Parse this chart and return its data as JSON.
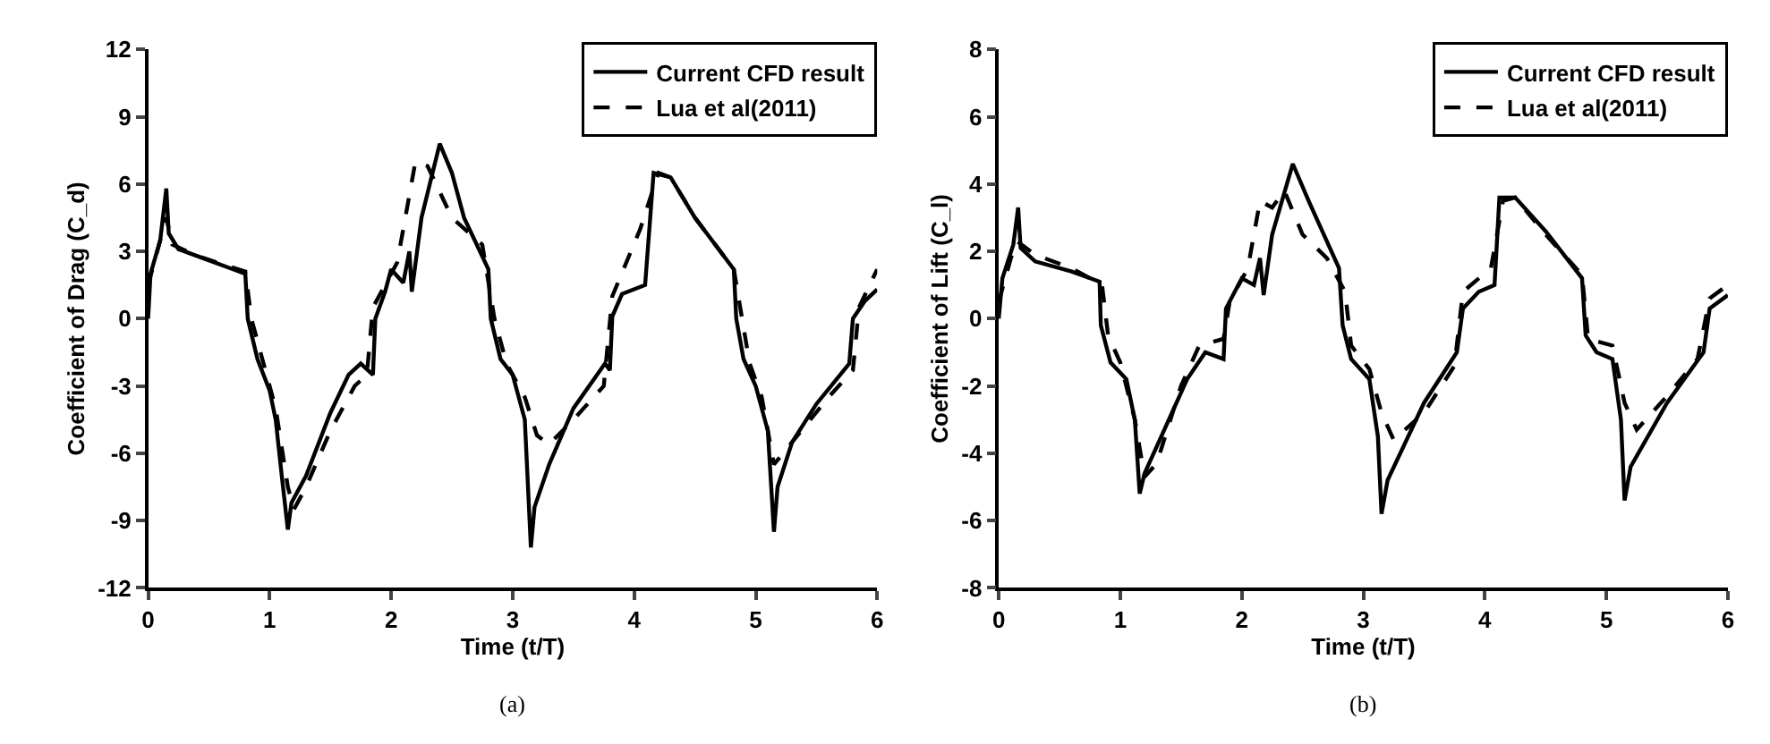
{
  "chart_data": [
    {
      "type": "line",
      "xlabel": "Time (t/T)",
      "ylabel": "Coefficient of Drag (C_d)",
      "xlim": [
        0,
        6
      ],
      "xticks": [
        0,
        1,
        2,
        3,
        4,
        5,
        6
      ],
      "ylim": [
        -12,
        12
      ],
      "yticks": [
        -12,
        -9,
        -6,
        -3,
        0,
        3,
        6,
        9,
        12
      ],
      "legend": "top right",
      "marker": "none",
      "annotations": [
        "(a)"
      ],
      "series": [
        {
          "name": "Current CFD result",
          "color": "#000000",
          "line_style": "solid",
          "x": [
            0,
            0.02,
            0.1,
            0.15,
            0.17,
            0.25,
            0.5,
            0.8,
            0.82,
            0.9,
            1.0,
            1.05,
            1.1,
            1.15,
            1.18,
            1.3,
            1.5,
            1.65,
            1.75,
            1.85,
            1.87,
            1.95,
            2.0,
            2.1,
            2.15,
            2.17,
            2.25,
            2.4,
            2.5,
            2.6,
            2.8,
            2.82,
            2.9,
            3.0,
            3.1,
            3.15,
            3.18,
            3.3,
            3.5,
            3.76,
            3.8,
            3.82,
            3.9,
            4.09,
            4.16,
            4.3,
            4.5,
            4.82,
            4.84,
            4.9,
            5.0,
            5.1,
            5.15,
            5.18,
            5.3,
            5.5,
            5.77,
            5.8,
            5.9,
            6.0
          ],
          "values": [
            0,
            2,
            3.5,
            5.8,
            3.8,
            3.1,
            2.6,
            2.0,
            0,
            -1.8,
            -3.2,
            -4.5,
            -7,
            -9.4,
            -8.2,
            -7,
            -4.2,
            -2.5,
            -2.0,
            -2.5,
            0,
            1.2,
            2.2,
            1.6,
            3.0,
            1.2,
            4.5,
            7.8,
            6.5,
            4.5,
            2.2,
            0,
            -1.8,
            -2.5,
            -4.5,
            -10.2,
            -8.4,
            -6.5,
            -4.0,
            -2.0,
            -2.3,
            0.1,
            1.1,
            1.5,
            6.5,
            6.3,
            4.5,
            2.2,
            0,
            -1.8,
            -3.0,
            -5,
            -9.5,
            -7.5,
            -5.5,
            -3.8,
            -2.0,
            0,
            0.8,
            1.3
          ]
        },
        {
          "name": "Lua et al(2011)",
          "color": "#000000",
          "line_style": "dashed",
          "x": [
            0,
            0.05,
            0.15,
            0.2,
            0.4,
            0.8,
            0.85,
            0.95,
            1.05,
            1.15,
            1.2,
            1.3,
            1.5,
            1.7,
            1.8,
            1.85,
            1.95,
            2.05,
            2.2,
            2.3,
            2.5,
            2.75,
            2.85,
            2.95,
            3.1,
            3.2,
            3.3,
            3.5,
            3.75,
            3.82,
            4.05,
            4.2,
            4.3,
            4.5,
            4.82,
            4.95,
            5.05,
            5.15,
            5.3,
            5.6,
            5.8,
            5.85,
            6.0
          ],
          "values": [
            1.5,
            2.5,
            4.5,
            3.3,
            2.8,
            2.1,
            0,
            -2.0,
            -4.0,
            -7.5,
            -8.5,
            -7.5,
            -5,
            -3.0,
            -2.5,
            0.5,
            1.5,
            2.5,
            7.0,
            6.8,
            4.5,
            3.3,
            0,
            -2.0,
            -3.5,
            -5.2,
            -5.6,
            -4.5,
            -3.0,
            1.0,
            4.0,
            6.5,
            6.3,
            4.5,
            2.2,
            -2.0,
            -3.5,
            -6.5,
            -5.5,
            -3.5,
            -2.3,
            0.5,
            2.2
          ]
        }
      ]
    },
    {
      "type": "line",
      "xlabel": "Time (t/T)",
      "ylabel": "Coefficient of Lift (C_l)",
      "xlim": [
        0,
        6
      ],
      "xticks": [
        0,
        1,
        2,
        3,
        4,
        5,
        6
      ],
      "ylim": [
        -8,
        8
      ],
      "yticks": [
        -8,
        -6,
        -4,
        -2,
        0,
        2,
        4,
        6,
        8
      ],
      "legend": "top right",
      "marker": "none",
      "annotations": [
        "(b)"
      ],
      "series": [
        {
          "name": "Current CFD result",
          "color": "#000000",
          "line_style": "solid",
          "x": [
            0,
            0.03,
            0.12,
            0.16,
            0.18,
            0.3,
            0.6,
            0.83,
            0.84,
            0.92,
            1.05,
            1.12,
            1.16,
            1.2,
            1.35,
            1.55,
            1.7,
            1.85,
            1.87,
            2.0,
            2.1,
            2.15,
            2.18,
            2.25,
            2.42,
            2.55,
            2.8,
            2.83,
            2.9,
            3.05,
            3.12,
            3.15,
            3.2,
            3.5,
            3.77,
            3.82,
            3.95,
            4.08,
            4.12,
            4.25,
            4.5,
            4.8,
            4.83,
            4.92,
            5.05,
            5.12,
            5.15,
            5.2,
            5.5,
            5.8,
            5.85,
            6.0
          ],
          "values": [
            0,
            1.2,
            2.2,
            3.3,
            2.1,
            1.7,
            1.4,
            1.1,
            -0.2,
            -1.3,
            -1.8,
            -3,
            -5.2,
            -4.6,
            -3.4,
            -1.8,
            -1.0,
            -1.2,
            0.3,
            1.2,
            1.0,
            1.8,
            0.7,
            2.5,
            4.6,
            3.5,
            1.5,
            -0.2,
            -1.2,
            -1.8,
            -3.5,
            -5.8,
            -4.8,
            -2.5,
            -1.0,
            0.3,
            0.8,
            1.0,
            3.6,
            3.6,
            2.6,
            1.2,
            -0.5,
            -1.0,
            -1.2,
            -3,
            -5.4,
            -4.4,
            -2.5,
            -1.0,
            0.3,
            0.7
          ]
        },
        {
          "name": "Lua et al(2011)",
          "color": "#000000",
          "line_style": "dashed",
          "x": [
            0,
            0.1,
            0.15,
            0.3,
            0.6,
            0.85,
            0.9,
            1.0,
            1.12,
            1.2,
            1.3,
            1.5,
            1.65,
            1.85,
            1.9,
            2.05,
            2.15,
            2.25,
            2.35,
            2.5,
            2.7,
            2.85,
            2.9,
            3.05,
            3.15,
            3.25,
            3.5,
            3.75,
            3.82,
            4.05,
            4.15,
            4.25,
            4.5,
            4.8,
            4.85,
            5.05,
            5.15,
            5.25,
            5.5,
            5.75,
            5.85,
            6.0
          ],
          "values": [
            0.5,
            1.8,
            2.3,
            1.9,
            1.5,
            1.0,
            -0.5,
            -1.3,
            -3,
            -4.7,
            -4.3,
            -2.0,
            -0.8,
            -0.6,
            0.5,
            1.5,
            3.5,
            3.3,
            3.8,
            2.5,
            1.8,
            0.8,
            -0.8,
            -1.5,
            -2.8,
            -3.6,
            -2.8,
            -1.4,
            0.8,
            1.5,
            3.5,
            3.6,
            2.5,
            1.3,
            -0.6,
            -0.8,
            -2.5,
            -3.3,
            -2.3,
            -1.2,
            0.6,
            1.0
          ]
        }
      ]
    }
  ]
}
